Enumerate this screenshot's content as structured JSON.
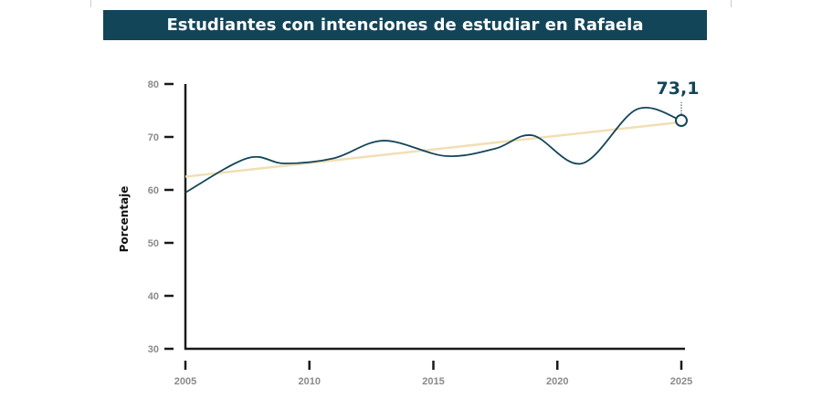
{
  "chart_data": {
    "type": "line",
    "title": "Estudiantes con intenciones de estudiar en Rafaela",
    "xlabel": "",
    "ylabel": "Porcentaje",
    "xlim": [
      2005,
      2025
    ],
    "ylim": [
      30,
      80
    ],
    "x_ticks": [
      "2005",
      "2010",
      "2015",
      "2020",
      "2025"
    ],
    "y_ticks": [
      "30",
      "40",
      "50",
      "60",
      "70",
      "80"
    ],
    "grid": false,
    "series": [
      {
        "x": [
          2005,
          2007.5,
          2009,
          2011,
          2013,
          2015.5,
          2017.5,
          2019,
          2021,
          2023.2,
          2025
        ],
        "values": [
          59.5,
          66,
          65,
          66,
          69.3,
          66.4,
          67.8,
          70.3,
          65,
          75.2,
          73.1
        ],
        "color": "#134559"
      }
    ],
    "trendline": {
      "x": [
        2005,
        2025
      ],
      "values": [
        62.5,
        72.8
      ],
      "color": "#f1dfb5"
    },
    "annotation": {
      "x": 2025,
      "value": 73.1,
      "label": "73,1"
    }
  }
}
